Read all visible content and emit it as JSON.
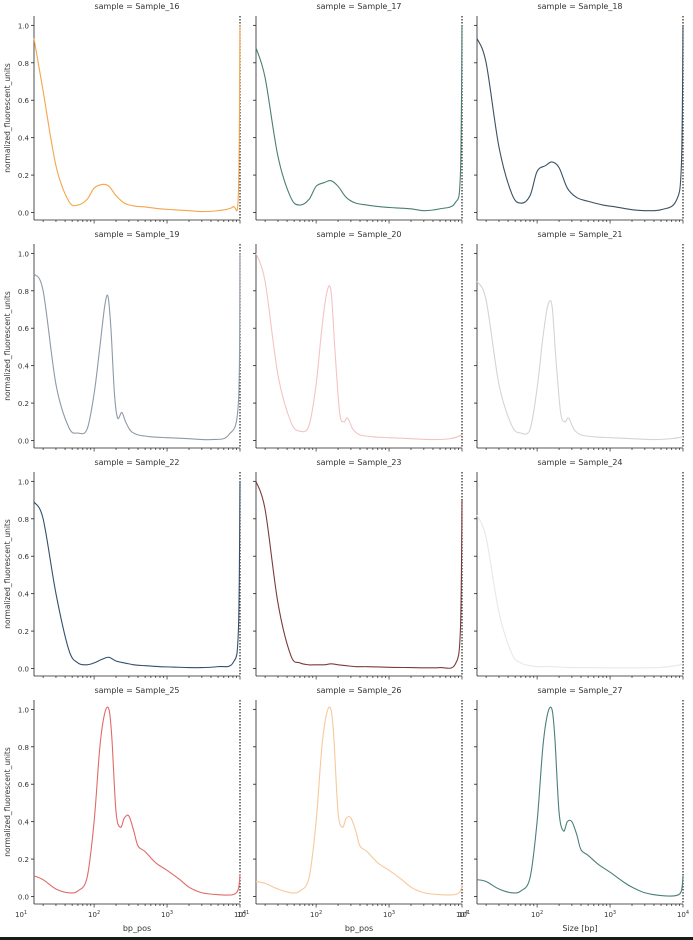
{
  "chart_data": {
    "type": "line",
    "x_scale": "log",
    "xlim": [
      15,
      10000
    ],
    "ylim": [
      -0.04,
      1.05
    ],
    "y_ticks": [
      0.0,
      0.2,
      0.4,
      0.6,
      0.8,
      1.0
    ],
    "y_tick_labels": [
      "0.0",
      "0.2",
      "0.4",
      "0.6",
      "0.8",
      "1.0"
    ],
    "x_tick_labels": [
      "10",
      "10",
      "10",
      "10"
    ],
    "x_tick_exponents": [
      "1",
      "2",
      "3",
      "4"
    ],
    "ylabel": "normalized_fluorescent_units",
    "xlabels": [
      "bp_pos",
      "bp_pos",
      "Size [bp]"
    ],
    "grid": false,
    "panels": [
      {
        "title": "sample = Sample_16",
        "color": "#f5a54a",
        "x": [
          15,
          20,
          30,
          45,
          60,
          80,
          100,
          130,
          160,
          200,
          260,
          350,
          500,
          800,
          1200,
          2000,
          3000,
          5000,
          8000,
          9500,
          10000
        ],
        "y": [
          0.93,
          0.65,
          0.25,
          0.06,
          0.04,
          0.07,
          0.13,
          0.15,
          0.14,
          0.09,
          0.05,
          0.035,
          0.03,
          0.02,
          0.015,
          0.01,
          0.005,
          0.01,
          0.03,
          0.1,
          1.0
        ]
      },
      {
        "title": "sample = Sample_17",
        "color": "#4a7f76",
        "x": [
          15,
          20,
          30,
          45,
          60,
          80,
          100,
          130,
          160,
          200,
          260,
          350,
          500,
          800,
          1200,
          2000,
          3000,
          5000,
          8000,
          9500,
          10000
        ],
        "y": [
          0.88,
          0.72,
          0.3,
          0.08,
          0.04,
          0.07,
          0.14,
          0.16,
          0.17,
          0.14,
          0.08,
          0.05,
          0.04,
          0.03,
          0.025,
          0.02,
          0.01,
          0.02,
          0.05,
          0.2,
          1.0
        ]
      },
      {
        "title": "sample = Sample_18",
        "color": "#3b5263",
        "x": [
          15,
          20,
          30,
          45,
          60,
          80,
          100,
          130,
          160,
          200,
          260,
          350,
          500,
          800,
          1200,
          2000,
          3000,
          5000,
          8000,
          9500,
          10000
        ],
        "y": [
          0.93,
          0.8,
          0.35,
          0.1,
          0.05,
          0.09,
          0.22,
          0.25,
          0.27,
          0.24,
          0.13,
          0.08,
          0.06,
          0.04,
          0.03,
          0.015,
          0.01,
          0.015,
          0.06,
          0.25,
          1.0
        ]
      },
      {
        "title": "sample = Sample_19",
        "color": "#8e9aa6",
        "x": [
          15,
          20,
          30,
          45,
          60,
          80,
          100,
          120,
          140,
          155,
          170,
          190,
          210,
          240,
          270,
          320,
          400,
          600,
          1000,
          2000,
          4000,
          7000,
          9500,
          10000
        ],
        "y": [
          0.89,
          0.8,
          0.3,
          0.07,
          0.04,
          0.06,
          0.25,
          0.5,
          0.72,
          0.77,
          0.6,
          0.25,
          0.12,
          0.15,
          0.1,
          0.05,
          0.03,
          0.02,
          0.015,
          0.01,
          0.005,
          0.03,
          0.2,
          1.0
        ]
      },
      {
        "title": "sample = Sample_20",
        "color": "#f4c3c3",
        "x": [
          15,
          20,
          30,
          45,
          60,
          80,
          100,
          120,
          140,
          160,
          180,
          210,
          240,
          270,
          320,
          400,
          600,
          1000,
          2000,
          4000,
          7000,
          10000
        ],
        "y": [
          1.0,
          0.85,
          0.35,
          0.1,
          0.05,
          0.08,
          0.3,
          0.6,
          0.79,
          0.8,
          0.5,
          0.15,
          0.1,
          0.12,
          0.06,
          0.03,
          0.02,
          0.015,
          0.01,
          0.005,
          0.01,
          0.03
        ]
      },
      {
        "title": "sample = Sample_21",
        "color": "#d4d4d4",
        "x": [
          15,
          20,
          30,
          45,
          60,
          80,
          100,
          120,
          140,
          160,
          180,
          210,
          240,
          270,
          320,
          400,
          600,
          1000,
          2000,
          4000,
          7000,
          10000
        ],
        "y": [
          0.85,
          0.75,
          0.3,
          0.08,
          0.04,
          0.06,
          0.28,
          0.55,
          0.72,
          0.72,
          0.45,
          0.15,
          0.1,
          0.12,
          0.06,
          0.03,
          0.02,
          0.015,
          0.01,
          0.005,
          0.01,
          0.02
        ]
      },
      {
        "title": "sample = Sample_22",
        "color": "#34506a",
        "x": [
          15,
          20,
          30,
          45,
          60,
          80,
          100,
          130,
          160,
          200,
          260,
          350,
          500,
          800,
          1200,
          2000,
          3000,
          5000,
          8000,
          9500,
          10000
        ],
        "y": [
          0.89,
          0.8,
          0.4,
          0.1,
          0.03,
          0.02,
          0.03,
          0.05,
          0.06,
          0.04,
          0.03,
          0.02,
          0.015,
          0.01,
          0.008,
          0.005,
          0.005,
          0.01,
          0.03,
          0.2,
          1.0
        ]
      },
      {
        "title": "sample = Sample_23",
        "color": "#7c3b3b",
        "x": [
          15,
          20,
          30,
          45,
          60,
          80,
          100,
          130,
          160,
          200,
          260,
          350,
          500,
          800,
          1200,
          2000,
          3000,
          5000,
          8000,
          9500,
          10000
        ],
        "y": [
          1.0,
          0.85,
          0.35,
          0.07,
          0.03,
          0.02,
          0.02,
          0.02,
          0.025,
          0.02,
          0.015,
          0.01,
          0.01,
          0.008,
          0.006,
          0.005,
          0.004,
          0.005,
          0.02,
          0.2,
          0.9
        ]
      },
      {
        "title": "sample = Sample_24",
        "color": "#e8e8e8",
        "x": [
          15,
          20,
          30,
          45,
          60,
          80,
          100,
          130,
          160,
          200,
          260,
          350,
          500,
          800,
          1200,
          2000,
          3000,
          5000,
          8000,
          10000
        ],
        "y": [
          0.82,
          0.7,
          0.3,
          0.08,
          0.03,
          0.015,
          0.01,
          0.01,
          0.01,
          0.008,
          0.006,
          0.005,
          0.005,
          0.004,
          0.004,
          0.004,
          0.004,
          0.006,
          0.015,
          0.025
        ]
      },
      {
        "title": "sample = Sample_25",
        "color": "#e06a68",
        "x": [
          15,
          20,
          30,
          45,
          60,
          80,
          100,
          120,
          140,
          160,
          175,
          200,
          230,
          260,
          300,
          350,
          400,
          500,
          700,
          1000,
          1500,
          2000,
          3000,
          5000,
          8000,
          9500,
          10000
        ],
        "y": [
          0.11,
          0.09,
          0.04,
          0.02,
          0.03,
          0.1,
          0.4,
          0.8,
          0.98,
          1.0,
          0.85,
          0.45,
          0.37,
          0.42,
          0.43,
          0.35,
          0.27,
          0.24,
          0.18,
          0.14,
          0.09,
          0.05,
          0.02,
          0.01,
          0.01,
          0.04,
          0.12
        ]
      },
      {
        "title": "sample = Sample_26",
        "color": "#f7c99b",
        "x": [
          15,
          20,
          30,
          45,
          60,
          80,
          100,
          120,
          140,
          160,
          175,
          200,
          230,
          260,
          300,
          350,
          400,
          500,
          700,
          1000,
          1500,
          2000,
          3000,
          5000,
          8000,
          9500,
          10000
        ],
        "y": [
          0.08,
          0.07,
          0.04,
          0.02,
          0.03,
          0.1,
          0.4,
          0.8,
          0.98,
          1.0,
          0.85,
          0.45,
          0.37,
          0.42,
          0.42,
          0.35,
          0.27,
          0.24,
          0.18,
          0.14,
          0.09,
          0.05,
          0.02,
          0.01,
          0.01,
          0.03,
          0.06
        ]
      },
      {
        "title": "sample = Sample_27",
        "color": "#4b7f79",
        "x": [
          15,
          20,
          30,
          45,
          60,
          80,
          100,
          120,
          140,
          160,
          175,
          200,
          230,
          260,
          300,
          350,
          400,
          500,
          700,
          1000,
          1500,
          2000,
          3000,
          5000,
          8000,
          9500,
          10000
        ],
        "y": [
          0.09,
          0.08,
          0.04,
          0.02,
          0.03,
          0.1,
          0.4,
          0.8,
          0.98,
          1.0,
          0.85,
          0.45,
          0.35,
          0.4,
          0.4,
          0.33,
          0.25,
          0.22,
          0.17,
          0.13,
          0.08,
          0.05,
          0.02,
          0.005,
          0.005,
          0.03,
          0.11
        ]
      }
    ]
  }
}
